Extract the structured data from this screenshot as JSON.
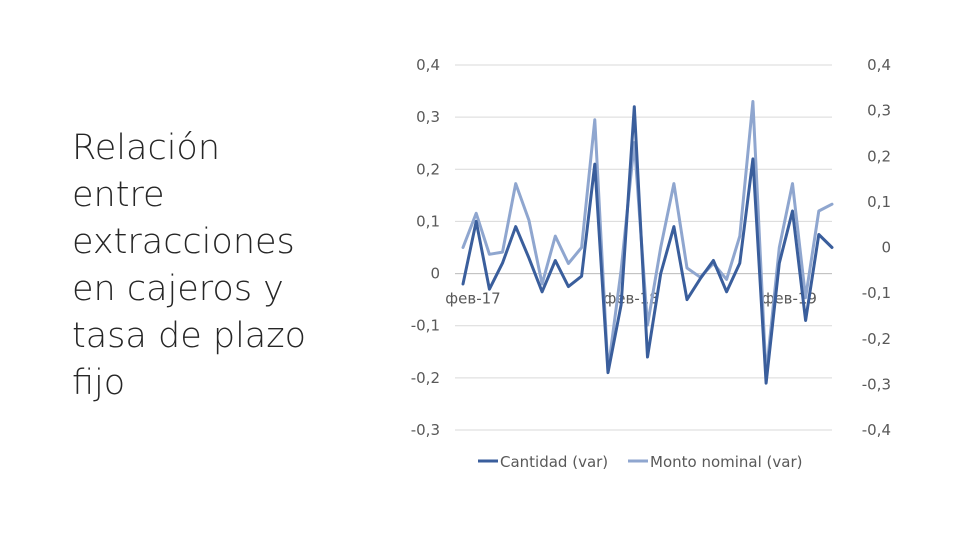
{
  "slide": {
    "title": "Relación\nentre\nextracciones\nen cajeros y\ntasa de plazo\nfijo"
  },
  "chart_data": {
    "type": "line",
    "title": "",
    "x": [
      "фев-17",
      "",
      "",
      "",
      "",
      "",
      "",
      "",
      "",
      "",
      "",
      "",
      "фев-18",
      "",
      "",
      "",
      "",
      "",
      "",
      "",
      "",
      "",
      "",
      "",
      "фев-19",
      "",
      "",
      "",
      ""
    ],
    "x_tick_labels": [
      {
        "index": 0,
        "label": "фев-17"
      },
      {
        "index": 12,
        "label": "фев-18"
      },
      {
        "index": 24,
        "label": "фев-19"
      }
    ],
    "left_axis": {
      "ticks": [
        "0,4",
        "0,3",
        "0,2",
        "0,1",
        "0",
        "-0,1",
        "-0,2",
        "-0,3"
      ],
      "range": [
        -0.3,
        0.4
      ]
    },
    "right_axis": {
      "ticks": [
        "0,4",
        "0,3",
        "0,2",
        "0,1",
        "0",
        "-0,1",
        "-0,2",
        "-0,3",
        "-0,4"
      ],
      "range": [
        -0.4,
        0.4
      ]
    },
    "grid": true,
    "legend_placement": "bottom",
    "series": [
      {
        "name": "Cantidad (var)",
        "axis": "left",
        "color": "#3a5e9c",
        "values": [
          -0.02,
          0.1,
          -0.03,
          0.02,
          0.09,
          0.03,
          -0.035,
          0.025,
          -0.025,
          -0.005,
          0.21,
          -0.19,
          -0.06,
          0.32,
          -0.16,
          0.0,
          0.09,
          -0.05,
          -0.01,
          0.025,
          -0.035,
          0.02,
          0.22,
          -0.21,
          0.02,
          0.12,
          -0.09,
          0.075,
          0.05
        ]
      },
      {
        "name": "Monto nominal (var)",
        "axis": "right",
        "color": "#8fa6cf",
        "values": [
          0.0,
          0.075,
          -0.015,
          -0.01,
          0.14,
          0.06,
          -0.08,
          0.025,
          -0.035,
          0.0,
          0.28,
          -0.27,
          -0.05,
          0.23,
          -0.17,
          0.0,
          0.14,
          -0.045,
          -0.065,
          -0.035,
          -0.07,
          0.025,
          0.32,
          -0.28,
          0.0,
          0.14,
          -0.11,
          0.08,
          0.095
        ]
      }
    ]
  }
}
